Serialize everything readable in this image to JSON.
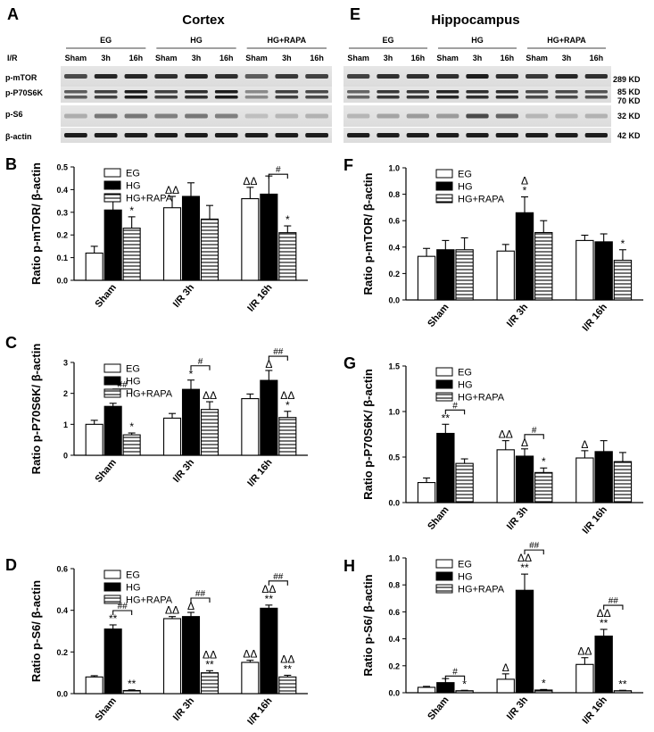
{
  "figure": {
    "blots": {
      "cortex": {
        "letter": "A",
        "title": "Cortex",
        "ir_label": "I/R",
        "groups": [
          "EG",
          "HG",
          "HG+RAPA"
        ],
        "lanes": [
          "Sham",
          "3h",
          "16h",
          "Sham",
          "3h",
          "16h",
          "Sham",
          "3h",
          "16h"
        ],
        "bands": [
          "p-mTOR",
          "p-P70S6K",
          "p-S6",
          "β-actin"
        ]
      },
      "hippocampus": {
        "letter": "E",
        "title": "Hippocampus",
        "groups": [
          "EG",
          "HG",
          "HG+RAPA"
        ],
        "lanes": [
          "Sham",
          "3h",
          "16h",
          "Sham",
          "3h",
          "16h",
          "Sham",
          "3h",
          "16h"
        ],
        "kd_markers": [
          "289 KD",
          "85 KD",
          "70 KD",
          "32 KD",
          "42 KD"
        ]
      }
    }
  },
  "chart_data": [
    {
      "panel": "B",
      "region": "Cortex",
      "type": "bar",
      "ylabel": "Ratio  p-mTOR/ β-actin",
      "ylim": [
        0,
        0.5
      ],
      "yticks": [
        0,
        0.1,
        0.2,
        0.3,
        0.4,
        0.5
      ],
      "categories": [
        "Sham",
        "I/R 3h",
        "I/R 16h"
      ],
      "legend": [
        "EG",
        "HG",
        "HG+RAPA"
      ],
      "legend_position": "top-left",
      "series": [
        {
          "name": "EG",
          "values": [
            0.12,
            0.32,
            0.36
          ],
          "errors": [
            0.03,
            0.05,
            0.05
          ]
        },
        {
          "name": "HG",
          "values": [
            0.31,
            0.37,
            0.38
          ],
          "errors": [
            0.06,
            0.06,
            0.08
          ]
        },
        {
          "name": "HG+RAPA",
          "values": [
            0.23,
            0.27,
            0.21
          ],
          "errors": [
            0.05,
            0.06,
            0.03
          ]
        }
      ],
      "annotations": [
        {
          "group": 0,
          "series": 1,
          "text": "*"
        },
        {
          "group": 0,
          "series": 2,
          "text": "*"
        },
        {
          "group": 1,
          "series": 0,
          "text": "ΔΔ"
        },
        {
          "group": 2,
          "series": 0,
          "text": "ΔΔ"
        },
        {
          "group": 2,
          "series": 2,
          "text": "*"
        }
      ],
      "brackets": [
        {
          "group": 2,
          "from": 1,
          "to": 2,
          "text": "#"
        }
      ]
    },
    {
      "panel": "C",
      "region": "Cortex",
      "type": "bar",
      "ylabel": "Ratio  p-P70S6K/ β-actin",
      "ylim": [
        0,
        3
      ],
      "yticks": [
        0,
        1,
        2,
        3
      ],
      "categories": [
        "Sham",
        "I/R 3h",
        "I/R 16h"
      ],
      "legend": [
        "EG",
        "HG",
        "HG+RAPA"
      ],
      "legend_position": "top-left",
      "series": [
        {
          "name": "EG",
          "values": [
            1.0,
            1.2,
            1.83
          ],
          "errors": [
            0.13,
            0.15,
            0.15
          ]
        },
        {
          "name": "HG",
          "values": [
            1.58,
            2.13,
            2.42
          ],
          "errors": [
            0.1,
            0.3,
            0.32
          ]
        },
        {
          "name": "HG+RAPA",
          "values": [
            0.66,
            1.48,
            1.22
          ],
          "errors": [
            0.06,
            0.25,
            0.2
          ]
        }
      ],
      "annotations": [
        {
          "group": 0,
          "series": 1,
          "text": "**"
        },
        {
          "group": 0,
          "series": 2,
          "text": "*"
        },
        {
          "group": 1,
          "series": 1,
          "text": "*"
        },
        {
          "group": 1,
          "series": 2,
          "text": "ΔΔ"
        },
        {
          "group": 2,
          "series": 1,
          "text": "Δ"
        },
        {
          "group": 2,
          "series": 2,
          "text": "ΔΔ\n*"
        }
      ],
      "brackets": [
        {
          "group": 0,
          "from": 1,
          "to": 2,
          "text": "##"
        },
        {
          "group": 1,
          "from": 1,
          "to": 2,
          "text": "#"
        },
        {
          "group": 2,
          "from": 1,
          "to": 2,
          "text": "##"
        }
      ]
    },
    {
      "panel": "D",
      "region": "Cortex",
      "type": "bar",
      "ylabel": "Ratio  p-S6/ β-actin",
      "ylim": [
        0,
        0.6
      ],
      "yticks": [
        0,
        0.2,
        0.4,
        0.6
      ],
      "categories": [
        "Sham",
        "I/R 3h",
        "I/R 16h"
      ],
      "legend": [
        "EG",
        "HG",
        "HG+RAPA"
      ],
      "legend_position": "top-left",
      "series": [
        {
          "name": "EG",
          "values": [
            0.08,
            0.36,
            0.15
          ],
          "errors": [
            0.006,
            0.01,
            0.01
          ]
        },
        {
          "name": "HG",
          "values": [
            0.31,
            0.37,
            0.41
          ],
          "errors": [
            0.02,
            0.02,
            0.015
          ]
        },
        {
          "name": "HG+RAPA",
          "values": [
            0.015,
            0.1,
            0.08
          ],
          "errors": [
            0.003,
            0.01,
            0.008
          ]
        }
      ],
      "annotations": [
        {
          "group": 0,
          "series": 1,
          "text": "**"
        },
        {
          "group": 0,
          "series": 2,
          "text": "**"
        },
        {
          "group": 1,
          "series": 0,
          "text": "ΔΔ"
        },
        {
          "group": 1,
          "series": 1,
          "text": "Δ"
        },
        {
          "group": 1,
          "series": 2,
          "text": "ΔΔ\n**"
        },
        {
          "group": 2,
          "series": 0,
          "text": "ΔΔ"
        },
        {
          "group": 2,
          "series": 1,
          "text": "ΔΔ\n**"
        },
        {
          "group": 2,
          "series": 2,
          "text": "ΔΔ\n**"
        }
      ],
      "brackets": [
        {
          "group": 0,
          "from": 1,
          "to": 2,
          "text": "##"
        },
        {
          "group": 1,
          "from": 1,
          "to": 2,
          "text": "##"
        },
        {
          "group": 2,
          "from": 1,
          "to": 2,
          "text": "##"
        }
      ]
    },
    {
      "panel": "F",
      "region": "Hippocampus",
      "type": "bar",
      "ylabel": "Ratio  p-mTOR/ β-actin",
      "ylim": [
        0,
        1.0
      ],
      "yticks": [
        0,
        0.2,
        0.4,
        0.6,
        0.8,
        1.0
      ],
      "categories": [
        "Sham",
        "I/R 3h",
        "I/R 16h"
      ],
      "legend": [
        "EG",
        "HG",
        "HG+RAPA"
      ],
      "legend_position": "top-left",
      "series": [
        {
          "name": "EG",
          "values": [
            0.33,
            0.37,
            0.45
          ],
          "errors": [
            0.06,
            0.05,
            0.04
          ]
        },
        {
          "name": "HG",
          "values": [
            0.38,
            0.66,
            0.44
          ],
          "errors": [
            0.07,
            0.12,
            0.06
          ]
        },
        {
          "name": "HG+RAPA",
          "values": [
            0.38,
            0.51,
            0.3
          ],
          "errors": [
            0.09,
            0.09,
            0.08
          ]
        }
      ],
      "annotations": [
        {
          "group": 1,
          "series": 1,
          "text": "Δ\n*"
        },
        {
          "group": 2,
          "series": 2,
          "text": "*"
        }
      ],
      "brackets": []
    },
    {
      "panel": "G",
      "region": "Hippocampus",
      "type": "bar",
      "ylabel": "Ratio  p-P70S6K/ β-actin",
      "ylim": [
        0,
        1.5
      ],
      "yticks": [
        0.0,
        0.5,
        1.0,
        1.5
      ],
      "categories": [
        "Sham",
        "I/R 3h",
        "I/R 16h"
      ],
      "legend": [
        "EG",
        "HG",
        "HG+RAPA"
      ],
      "legend_position": "top-left",
      "series": [
        {
          "name": "EG",
          "values": [
            0.22,
            0.58,
            0.49
          ],
          "errors": [
            0.05,
            0.1,
            0.08
          ]
        },
        {
          "name": "HG",
          "values": [
            0.76,
            0.51,
            0.56
          ],
          "errors": [
            0.1,
            0.08,
            0.12
          ]
        },
        {
          "name": "HG+RAPA",
          "values": [
            0.43,
            0.33,
            0.45
          ],
          "errors": [
            0.05,
            0.05,
            0.1
          ]
        }
      ],
      "annotations": [
        {
          "group": 0,
          "series": 1,
          "text": "**"
        },
        {
          "group": 1,
          "series": 0,
          "text": "ΔΔ"
        },
        {
          "group": 1,
          "series": 1,
          "text": "Δ"
        },
        {
          "group": 1,
          "series": 2,
          "text": "*"
        },
        {
          "group": 2,
          "series": 0,
          "text": "Δ"
        }
      ],
      "brackets": [
        {
          "group": 0,
          "from": 1,
          "to": 2,
          "text": "#"
        },
        {
          "group": 1,
          "from": 1,
          "to": 2,
          "text": "#"
        }
      ]
    },
    {
      "panel": "H",
      "region": "Hippocampus",
      "type": "bar",
      "ylabel": "Ratio  p-S6/ β-actin",
      "ylim": [
        0,
        1.0
      ],
      "yticks": [
        0.0,
        0.2,
        0.4,
        0.6,
        0.8,
        1.0
      ],
      "categories": [
        "Sham",
        "I/R 3h",
        "I/R 16h"
      ],
      "legend": [
        "EG",
        "HG",
        "HG+RAPA"
      ],
      "legend_position": "top-left",
      "series": [
        {
          "name": "EG",
          "values": [
            0.04,
            0.1,
            0.21
          ],
          "errors": [
            0.007,
            0.04,
            0.05
          ]
        },
        {
          "name": "HG",
          "values": [
            0.075,
            0.76,
            0.42
          ],
          "errors": [
            0.03,
            0.12,
            0.05
          ]
        },
        {
          "name": "HG+RAPA",
          "values": [
            0.015,
            0.02,
            0.015
          ],
          "errors": [
            0.003,
            0.004,
            0.003
          ]
        }
      ],
      "annotations": [
        {
          "group": 0,
          "series": 2,
          "text": "*"
        },
        {
          "group": 1,
          "series": 0,
          "text": "Δ"
        },
        {
          "group": 1,
          "series": 1,
          "text": "ΔΔ\n**"
        },
        {
          "group": 1,
          "series": 2,
          "text": "*"
        },
        {
          "group": 2,
          "series": 0,
          "text": "ΔΔ"
        },
        {
          "group": 2,
          "series": 1,
          "text": "ΔΔ\n**"
        },
        {
          "group": 2,
          "series": 2,
          "text": "**"
        }
      ],
      "brackets": [
        {
          "group": 0,
          "from": 1,
          "to": 2,
          "text": "#"
        },
        {
          "group": 1,
          "from": 1,
          "to": 2,
          "text": "##"
        },
        {
          "group": 2,
          "from": 1,
          "to": 2,
          "text": "##"
        }
      ]
    }
  ]
}
